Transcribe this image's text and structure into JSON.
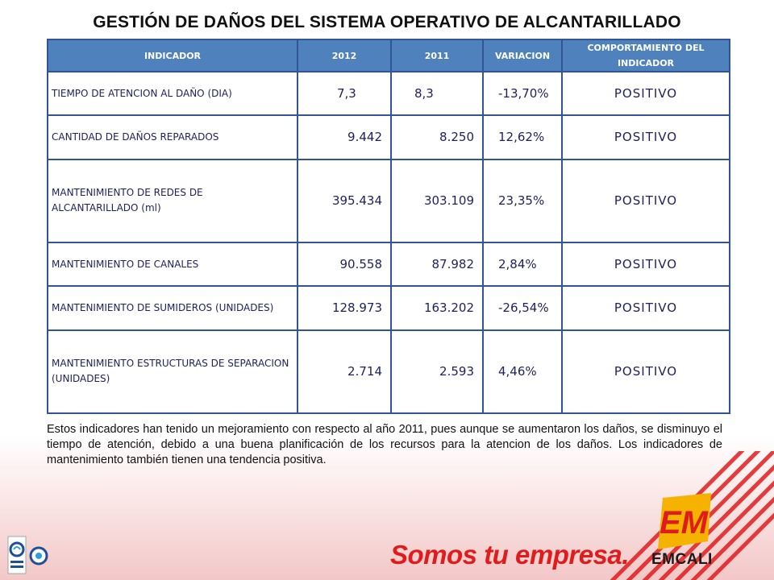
{
  "title": "GESTIÓN DE DAÑOS DEL SISTEMA OPERATIVO DE ALCANTARILLADO",
  "table": {
    "headers": [
      "INDICADOR",
      "2012",
      "2011",
      "VARIACION",
      "COMPORTAMIENTO DEL INDICADOR"
    ],
    "rows": [
      {
        "indicador": "TIEMPO DE ATENCION AL DAÑO (DIA)",
        "y2012": "7,3",
        "y2011": "8,3",
        "variacion": "-13,70%",
        "comportamiento": "POSITIVO"
      },
      {
        "indicador": "CANTIDAD DE DAÑOS REPARADOS",
        "y2012": "9.442",
        "y2011": "8.250",
        "variacion": "12,62%",
        "comportamiento": "POSITIVO"
      },
      {
        "indicador": "MANTENIMIENTO DE REDES DE ALCANTARILLADO (ml)",
        "y2012": "395.434",
        "y2011": "303.109",
        "variacion": "23,35%",
        "comportamiento": "POSITIVO"
      },
      {
        "indicador": "MANTENIMIENTO DE CANALES",
        "y2012": "90.558",
        "y2011": "87.982",
        "variacion": "2,84%",
        "comportamiento": "POSITIVO"
      },
      {
        "indicador": "MANTENIMIENTO DE SUMIDEROS (UNIDADES)",
        "y2012": "128.973",
        "y2011": "163.202",
        "variacion": "-26,54%",
        "comportamiento": "POSITIVO"
      },
      {
        "indicador": "MANTENIMIENTO ESTRUCTURAS DE SEPARACION (UNIDADES)",
        "y2012": "2.714",
        "y2011": "2.593",
        "variacion": "4,46%",
        "comportamiento": "POSITIVO"
      }
    ]
  },
  "summary": "Estos   indicadores han tenido un mejoramiento con respecto al año 2011, pues aunque se aumentaron los daños, se disminuyo el tiempo de atención, debido a una buena planificación de los recursos para la atencion de los daños. Los indicadores de mantenimiento también tienen una tendencia positiva.",
  "footer": {
    "slogan": "Somos tu empresa.",
    "logo_name": "EMCALI",
    "logo_mark": "EM",
    "certification_icon": "certification-seal-icon",
    "brand_color": "#e01b1b"
  }
}
